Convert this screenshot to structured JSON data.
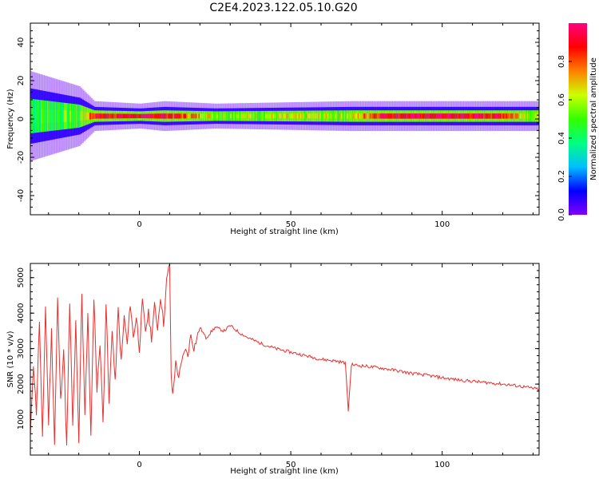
{
  "figure": {
    "title": "C2E4.2023.122.05.10.G20"
  },
  "chart_data": [
    {
      "type": "heatmap",
      "xlabel": "Height of straight line (km)",
      "ylabel": "Frequency (Hz)",
      "xlim": [
        -36,
        132
      ],
      "ylim": [
        -50,
        50
      ],
      "x_ticks": [
        0,
        50,
        100
      ],
      "y_ticks": [
        -40,
        -20,
        0,
        20,
        40
      ],
      "colorbar": {
        "label": "Normalized spectral amplitude",
        "range": [
          0.0,
          1.0
        ],
        "ticks": [
          "0.0",
          "0.2",
          "0.4",
          "0.6",
          "0.8"
        ],
        "colormap": [
          "#7f00ff",
          "#0000ff",
          "#00bfff",
          "#00ff80",
          "#33ff00",
          "#ccff00",
          "#ff8000",
          "#ff0000",
          "#ff0080"
        ]
      },
      "band_center_hz": 1.5,
      "band_profile": [
        {
          "x": -36,
          "half_width_hz": 9,
          "peak": 0.45
        },
        {
          "x": -20,
          "half_width_hz": 6,
          "peak": 0.5
        },
        {
          "x": -15,
          "half_width_hz": 3,
          "peak": 0.9
        },
        {
          "x": 0,
          "half_width_hz": 2.5,
          "peak": 0.95
        },
        {
          "x": 8,
          "half_width_hz": 3,
          "peak": 0.95
        },
        {
          "x": 25,
          "half_width_hz": 2.5,
          "peak": 0.6
        },
        {
          "x": 70,
          "half_width_hz": 3,
          "peak": 0.6
        },
        {
          "x": 80,
          "half_width_hz": 3,
          "peak": 0.95
        },
        {
          "x": 100,
          "half_width_hz": 3,
          "peak": 0.95
        },
        {
          "x": 120,
          "half_width_hz": 3,
          "peak": 0.9
        },
        {
          "x": 132,
          "half_width_hz": 3,
          "peak": 0.5
        }
      ]
    },
    {
      "type": "line",
      "xlabel": "Height of straight line (km)",
      "ylabel": "SNR (10 * v/v)",
      "xlim": [
        -36,
        132
      ],
      "ylim": [
        0,
        5400
      ],
      "x_ticks": [
        0,
        50,
        100
      ],
      "y_ticks": [
        1000,
        2000,
        3000,
        4000,
        5000
      ],
      "series": [
        {
          "color": "#e8312e",
          "points": [
            [
              -36,
              500
            ],
            [
              -35,
              2600
            ],
            [
              -34,
              1200
            ],
            [
              -33,
              3800
            ],
            [
              -32,
              400
            ],
            [
              -31,
              4200
            ],
            [
              -30,
              900
            ],
            [
              -29,
              3500
            ],
            [
              -28,
              300
            ],
            [
              -27,
              4400
            ],
            [
              -26,
              1500
            ],
            [
              -25,
              3000
            ],
            [
              -24,
              200
            ],
            [
              -23,
              4300
            ],
            [
              -22,
              800
            ],
            [
              -21,
              3700
            ],
            [
              -20,
              300
            ],
            [
              -19,
              4600
            ],
            [
              -18,
              1200
            ],
            [
              -17,
              3900
            ],
            [
              -16,
              500
            ],
            [
              -15,
              4500
            ],
            [
              -14,
              1800
            ],
            [
              -13,
              3200
            ],
            [
              -12,
              900
            ],
            [
              -11,
              4300
            ],
            [
              -10,
              1400
            ],
            [
              -9,
              3600
            ],
            [
              -8,
              2000
            ],
            [
              -7,
              4100
            ],
            [
              -6,
              2600
            ],
            [
              -5,
              3900
            ],
            [
              -4,
              3100
            ],
            [
              -3,
              4300
            ],
            [
              -2,
              3300
            ],
            [
              -1,
              3900
            ],
            [
              0,
              3000
            ],
            [
              1,
              4300
            ],
            [
              2,
              3500
            ],
            [
              3,
              4000
            ],
            [
              4,
              3300
            ],
            [
              5,
              4200
            ],
            [
              6,
              3600
            ],
            [
              7,
              4500
            ],
            [
              8,
              3700
            ],
            [
              9,
              4900
            ],
            [
              10,
              5400
            ],
            [
              10.5,
              2200
            ],
            [
              11,
              1700
            ],
            [
              12,
              2600
            ],
            [
              13,
              2200
            ],
            [
              14,
              2600
            ],
            [
              15,
              3000
            ],
            [
              16,
              2800
            ],
            [
              17,
              3400
            ],
            [
              18,
              3000
            ],
            [
              19,
              3300
            ],
            [
              20,
              3600
            ],
            [
              22,
              3300
            ],
            [
              25,
              3600
            ],
            [
              28,
              3500
            ],
            [
              30,
              3650
            ],
            [
              33,
              3450
            ],
            [
              36,
              3300
            ],
            [
              40,
              3150
            ],
            [
              45,
              3000
            ],
            [
              50,
              2900
            ],
            [
              55,
              2800
            ],
            [
              60,
              2700
            ],
            [
              65,
              2650
            ],
            [
              68,
              2600
            ],
            [
              69,
              1250
            ],
            [
              70,
              2550
            ],
            [
              75,
              2500
            ],
            [
              80,
              2450
            ],
            [
              85,
              2380
            ],
            [
              90,
              2300
            ],
            [
              95,
              2250
            ],
            [
              100,
              2180
            ],
            [
              105,
              2120
            ],
            [
              110,
              2080
            ],
            [
              115,
              2040
            ],
            [
              120,
              2000
            ],
            [
              125,
              1950
            ],
            [
              130,
              1880
            ],
            [
              132,
              1850
            ]
          ]
        }
      ]
    }
  ]
}
